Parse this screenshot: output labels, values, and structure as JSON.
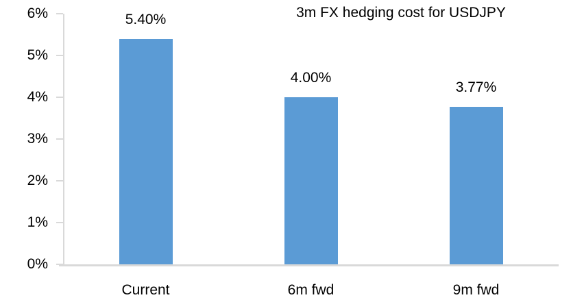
{
  "chart_data": {
    "type": "bar",
    "title": "3m FX hedging cost for USDJPY",
    "categories": [
      "Current",
      "6m fwd",
      "9m fwd"
    ],
    "values": [
      5.4,
      4.0,
      3.77
    ],
    "data_labels": [
      "5.40%",
      "4.00%",
      "3.77%"
    ],
    "xlabel": "",
    "ylabel": "",
    "ylim": [
      0,
      6
    ],
    "ytick_values": [
      0,
      1,
      2,
      3,
      4,
      5,
      6
    ],
    "ytick_labels": [
      "0%",
      "1%",
      "2%",
      "3%",
      "4%",
      "5%",
      "6%"
    ],
    "grid": false,
    "legend_position": "none",
    "bar_color": "#5B9BD5",
    "axis_color": "#D9D9D9",
    "text_color": "#000000",
    "background_color": "#FFFFFF"
  }
}
